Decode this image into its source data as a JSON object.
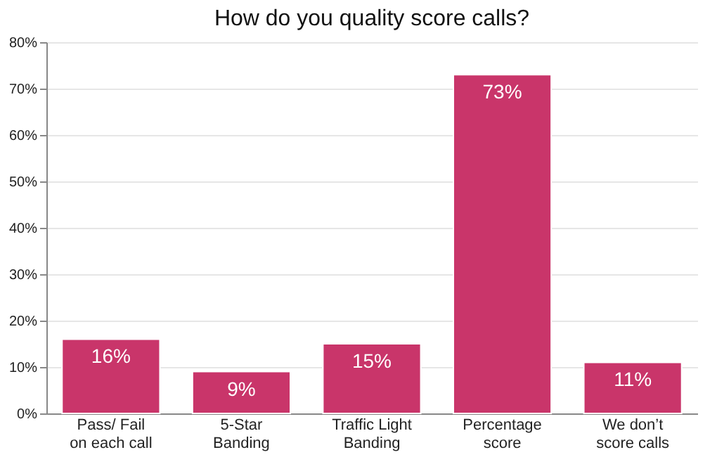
{
  "chart_data": {
    "type": "bar",
    "title": "How do you quality score calls?",
    "categories": [
      "Pass/ Fail\non each call",
      "5-Star\nBanding",
      "Traffic Light\nBanding",
      "Percentage\nscore",
      "We don’t\nscore calls"
    ],
    "values": [
      16,
      9,
      15,
      73,
      11
    ],
    "value_labels": [
      "16%",
      "9%",
      "15%",
      "73%",
      "11%"
    ],
    "color": "#c9356a",
    "ylim": [
      0,
      80
    ],
    "yticks": [
      {
        "value": 0,
        "label": "0%"
      },
      {
        "value": 10,
        "label": "10%"
      },
      {
        "value": 20,
        "label": "20%"
      },
      {
        "value": 30,
        "label": "30%"
      },
      {
        "value": 40,
        "label": "40%"
      },
      {
        "value": 50,
        "label": "50%"
      },
      {
        "value": 60,
        "label": "60%"
      },
      {
        "value": 70,
        "label": "70%"
      },
      {
        "value": 80,
        "label": "80%"
      }
    ],
    "grid": "y"
  }
}
